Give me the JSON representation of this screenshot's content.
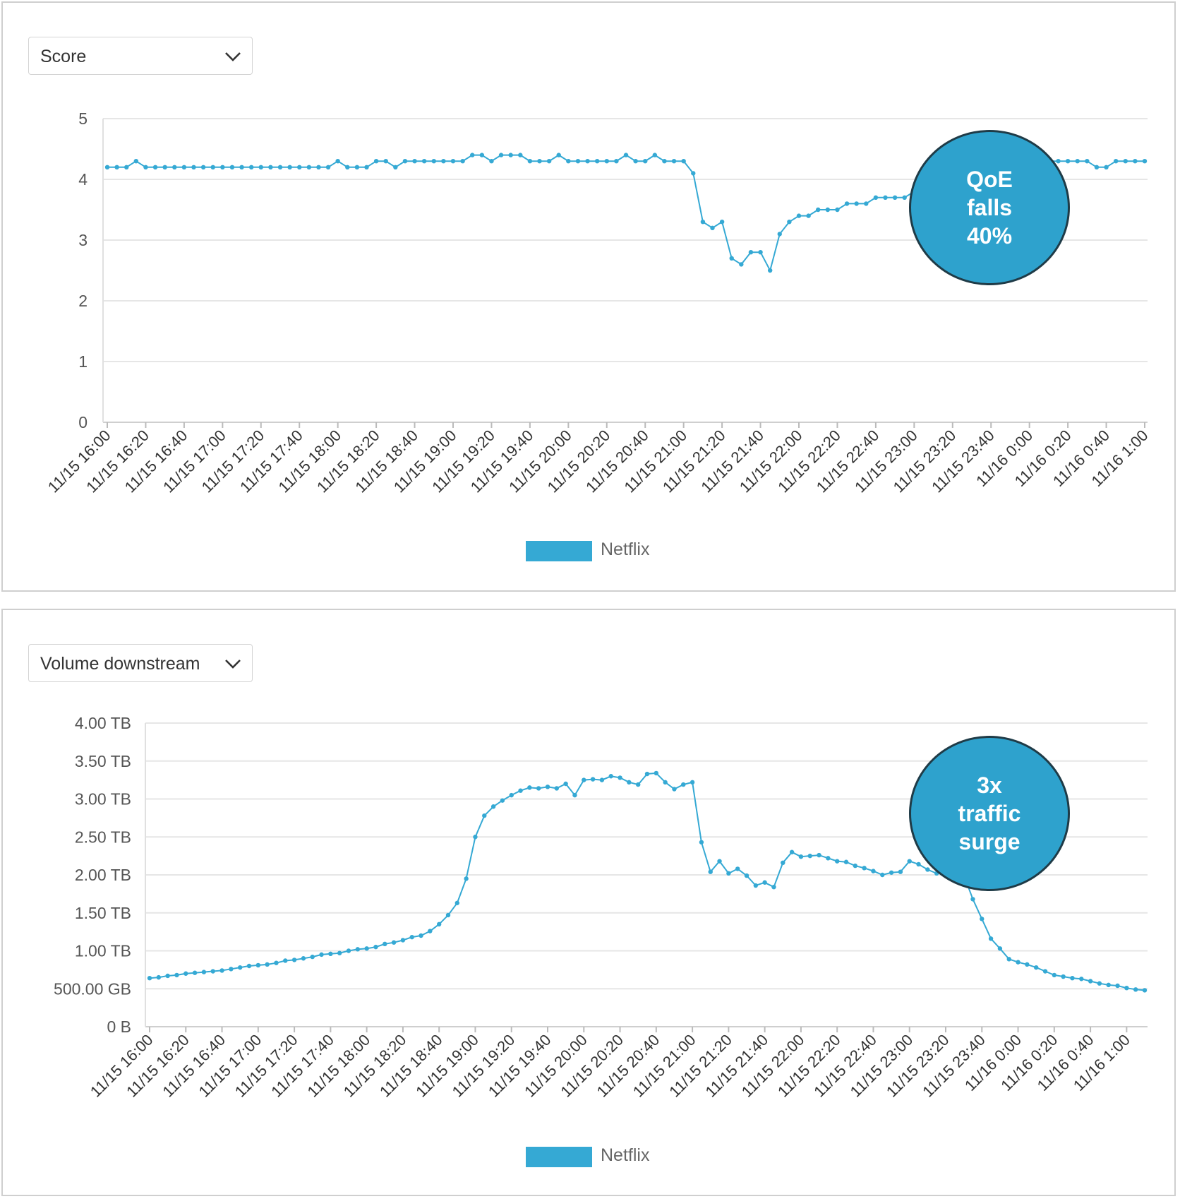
{
  "charts": [
    {
      "id": "score",
      "selector": "Score",
      "legend": "Netflix",
      "callout": "QoE\nfalls\n40%"
    },
    {
      "id": "volume",
      "selector": "Volume downstream",
      "legend": "Netflix",
      "callout": "3x\ntraffic\nsurge"
    }
  ],
  "colors": {
    "series": "#35a9d4",
    "callout_fill": "#2ea2cd",
    "callout_border": "#1f3b47",
    "grid": "#e6e6e6"
  },
  "icons": {
    "dropdown": "chevron-down-icon"
  },
  "chart_data": [
    {
      "type": "line",
      "ylim": [
        0,
        5
      ],
      "y_ticks": [
        0,
        1,
        2,
        3,
        4,
        5
      ],
      "y_tick_labels": [
        "0",
        "1",
        "2",
        "3",
        "4",
        "5"
      ],
      "x_tick_labels": [
        "11/15 16:00",
        "11/15 16:20",
        "11/15 16:40",
        "11/15 17:00",
        "11/15 17:20",
        "11/15 17:40",
        "11/15 18:00",
        "11/15 18:20",
        "11/15 18:40",
        "11/15 19:00",
        "11/15 19:20",
        "11/15 19:40",
        "11/15 20:00",
        "11/15 20:20",
        "11/15 20:40",
        "11/15 21:00",
        "11/15 21:20",
        "11/15 21:40",
        "11/15 22:00",
        "11/15 22:20",
        "11/15 22:40",
        "11/15 23:00",
        "11/15 23:20",
        "11/15 23:40",
        "11/16 0:00",
        "11/16 0:20",
        "11/16 0:40",
        "11/16 1:00"
      ],
      "x_interval_minutes": 5,
      "grid": true,
      "legend_position": "bottom-center",
      "series": [
        {
          "name": "Netflix",
          "values": [
            4.2,
            4.2,
            4.2,
            4.3,
            4.2,
            4.2,
            4.2,
            4.2,
            4.2,
            4.2,
            4.2,
            4.2,
            4.2,
            4.2,
            4.2,
            4.2,
            4.2,
            4.2,
            4.2,
            4.2,
            4.2,
            4.2,
            4.2,
            4.2,
            4.3,
            4.2,
            4.2,
            4.2,
            4.3,
            4.3,
            4.2,
            4.3,
            4.3,
            4.3,
            4.3,
            4.3,
            4.3,
            4.3,
            4.4,
            4.4,
            4.3,
            4.4,
            4.4,
            4.4,
            4.3,
            4.3,
            4.3,
            4.4,
            4.3,
            4.3,
            4.3,
            4.3,
            4.3,
            4.3,
            4.4,
            4.3,
            4.3,
            4.4,
            4.3,
            4.3,
            4.3,
            4.1,
            3.3,
            3.2,
            3.3,
            2.7,
            2.6,
            2.8,
            2.8,
            2.5,
            3.1,
            3.3,
            3.4,
            3.4,
            3.5,
            3.5,
            3.5,
            3.6,
            3.6,
            3.6,
            3.7,
            3.7,
            3.7,
            3.7,
            3.8,
            3.9,
            4.0,
            4.1,
            4.2,
            4.3,
            4.3,
            4.3,
            4.3,
            4.3,
            4.3,
            4.3,
            4.3,
            4.3,
            4.3,
            4.3,
            4.3,
            4.3,
            4.3,
            4.2,
            4.2,
            4.3,
            4.3,
            4.3,
            4.3
          ]
        }
      ]
    },
    {
      "type": "line",
      "ylim": [
        0,
        4
      ],
      "y_unit": "TB",
      "y_ticks": [
        0,
        0.5,
        1,
        1.5,
        2,
        2.5,
        3,
        3.5,
        4
      ],
      "y_tick_labels": [
        "0 B",
        "500.00 GB",
        "1.00 TB",
        "1.50 TB",
        "2.00 TB",
        "2.50 TB",
        "3.00 TB",
        "3.50 TB",
        "4.00 TB"
      ],
      "x_tick_labels": [
        "11/15 16:00",
        "11/15 16:20",
        "11/15 16:40",
        "11/15 17:00",
        "11/15 17:20",
        "11/15 17:40",
        "11/15 18:00",
        "11/15 18:20",
        "11/15 18:40",
        "11/15 19:00",
        "11/15 19:20",
        "11/15 19:40",
        "11/15 20:00",
        "11/15 20:20",
        "11/15 20:40",
        "11/15 21:00",
        "11/15 21:20",
        "11/15 21:40",
        "11/15 22:00",
        "11/15 22:20",
        "11/15 22:40",
        "11/15 23:00",
        "11/15 23:20",
        "11/15 23:40",
        "11/16 0:00",
        "11/16 0:20",
        "11/16 0:40",
        "11/16 1:00"
      ],
      "x_interval_minutes": 5,
      "grid": true,
      "legend_position": "bottom-center",
      "series": [
        {
          "name": "Netflix",
          "values": [
            0.64,
            0.65,
            0.67,
            0.68,
            0.7,
            0.71,
            0.72,
            0.73,
            0.74,
            0.76,
            0.78,
            0.8,
            0.81,
            0.82,
            0.84,
            0.87,
            0.88,
            0.9,
            0.92,
            0.95,
            0.96,
            0.97,
            1.0,
            1.02,
            1.03,
            1.05,
            1.09,
            1.11,
            1.14,
            1.18,
            1.2,
            1.26,
            1.35,
            1.47,
            1.63,
            1.95,
            2.5,
            2.78,
            2.9,
            2.98,
            3.05,
            3.11,
            3.15,
            3.14,
            3.16,
            3.14,
            3.2,
            3.05,
            3.25,
            3.26,
            3.25,
            3.3,
            3.28,
            3.22,
            3.19,
            3.33,
            3.34,
            3.22,
            3.13,
            3.19,
            3.22,
            2.43,
            2.04,
            2.18,
            2.02,
            2.08,
            1.99,
            1.86,
            1.9,
            1.84,
            2.16,
            2.3,
            2.24,
            2.25,
            2.26,
            2.22,
            2.18,
            2.17,
            2.12,
            2.09,
            2.05,
            2.0,
            2.03,
            2.04,
            2.18,
            2.14,
            2.07,
            2.02,
            2.04,
            2.06,
            2.0,
            1.68,
            1.42,
            1.16,
            1.03,
            0.89,
            0.85,
            0.82,
            0.78,
            0.73,
            0.68,
            0.66,
            0.64,
            0.63,
            0.6,
            0.57,
            0.55,
            0.54,
            0.51,
            0.49,
            0.48
          ]
        }
      ]
    }
  ]
}
